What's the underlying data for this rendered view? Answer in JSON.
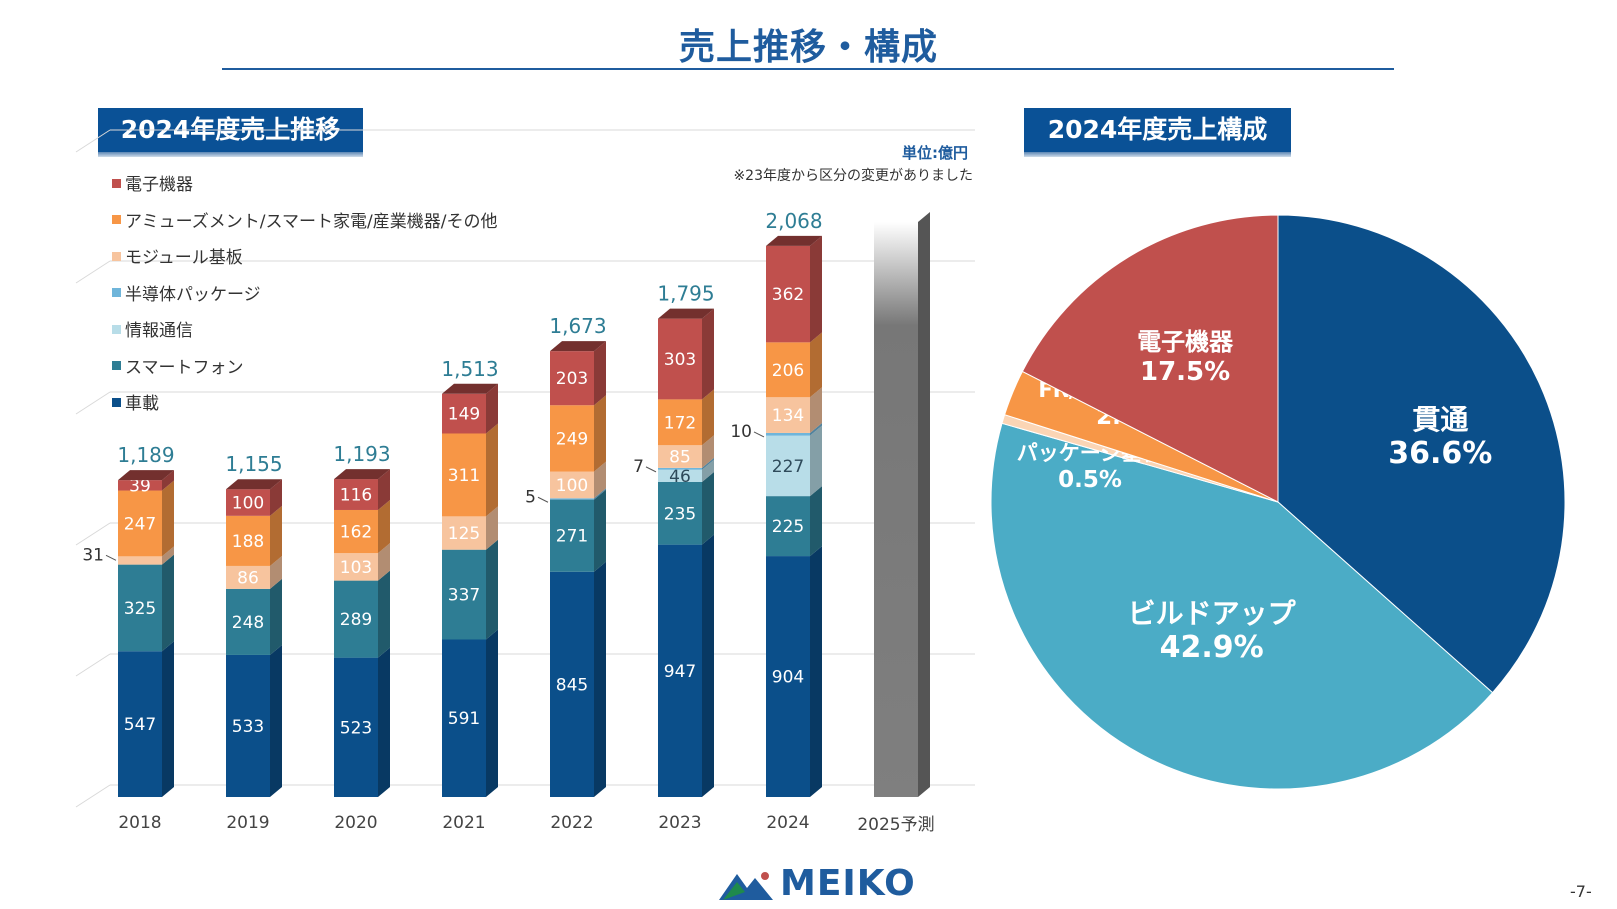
{
  "page": {
    "title": "売上推移・構成",
    "left_banner": "2024年度売上推移",
    "right_banner": "2024年度売上構成",
    "unit": "単位:億円",
    "note": "※23年度から区分の変更がありました",
    "logo_text": "MEIKO",
    "page_number": "-7-"
  },
  "chart_data": [
    {
      "type": "bar",
      "stacked": true,
      "title": "2024年度売上推移",
      "categories": [
        "2018",
        "2019",
        "2020",
        "2021",
        "2022",
        "2023",
        "2024",
        "2025予測"
      ],
      "series": [
        {
          "name": "車載",
          "color": "#0b4f8a",
          "values": [
            547,
            533,
            523,
            591,
            845,
            947,
            904,
            null
          ]
        },
        {
          "name": "スマートフォン",
          "color": "#2e7d94",
          "values": [
            325,
            248,
            289,
            337,
            271,
            235,
            225,
            null
          ]
        },
        {
          "name": "情報通信",
          "color": "#b8dde8",
          "values": [
            null,
            null,
            null,
            null,
            null,
            46,
            227,
            null
          ]
        },
        {
          "name": "半導体パッケージ",
          "color": "#6fb5da",
          "values": [
            null,
            null,
            null,
            null,
            5,
            7,
            10,
            null
          ]
        },
        {
          "name": "モジュール基板",
          "color": "#f7c49e",
          "values": [
            31,
            86,
            103,
            125,
            100,
            85,
            134,
            null
          ]
        },
        {
          "name": "アミューズメント/スマート家電/産業機器/その他",
          "color": "#f79646",
          "values": [
            247,
            188,
            162,
            311,
            249,
            172,
            206,
            null
          ]
        },
        {
          "name": "電子機器",
          "color": "#c0504d",
          "values": [
            39,
            100,
            116,
            149,
            203,
            303,
            362,
            null
          ]
        }
      ],
      "totals": [
        "1,189",
        "1,155",
        "1,193",
        "1,513",
        "1,673",
        "1,795",
        "2,068",
        ""
      ],
      "legend_order": [
        "電子機器",
        "アミューズメント/スマート家電/産業機器/その他",
        "モジュール基板",
        "半導体パッケージ",
        "情報通信",
        "スマートフォン",
        "車載"
      ],
      "legend_position": "top-left",
      "forecast_category": "2025予測",
      "grid": true
    },
    {
      "type": "pie",
      "title": "2024年度売上構成",
      "slices": [
        {
          "label": "貫通",
          "value": 36.6,
          "percent": "36.6%",
          "color": "#0b4f8a"
        },
        {
          "label": "ビルドアップ",
          "value": 42.9,
          "percent": "42.9%",
          "color": "#4bacc6"
        },
        {
          "label": "パッケージ基板",
          "value": 0.5,
          "percent": "0.5%",
          "color": "#fbd5b5"
        },
        {
          "label": "FR/フレキ/放熱 他",
          "value": 2.6,
          "percent": "2.6%",
          "color": "#f79646"
        },
        {
          "label": "電子機器",
          "value": 17.5,
          "percent": "17.5%",
          "color": "#c0504d"
        }
      ]
    }
  ]
}
